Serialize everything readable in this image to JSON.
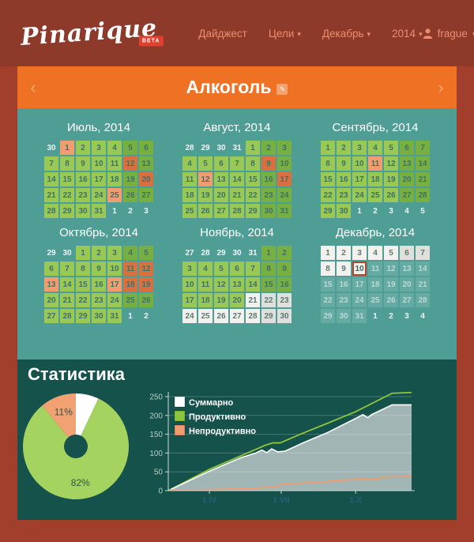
{
  "topbar": {
    "logo": "Pinarique",
    "beta": "BETA",
    "nav": [
      {
        "label": "Дайджест",
        "caret": false
      },
      {
        "label": "Цели",
        "caret": true
      },
      {
        "label": "Декабрь",
        "caret": true
      },
      {
        "label": "2014",
        "caret": true
      }
    ],
    "user": {
      "name": "frague"
    }
  },
  "header": {
    "title": "Алкоголь",
    "prev_icon": "‹",
    "next_icon": "›",
    "edit_icon": "✎"
  },
  "calendar": {
    "legend_states": {
      "o": "other-month",
      "g": "productive",
      "G": "productive-weekend",
      "b": "unproductive",
      "B": "unproductive-weekend",
      "e": "no-data",
      "E": "no-data-weekend",
      "f": "future",
      "t": "today"
    },
    "months": [
      {
        "title": "Июль, 2014",
        "cells": [
          [
            30,
            "o"
          ],
          [
            1,
            "b"
          ],
          [
            2,
            "g"
          ],
          [
            3,
            "g"
          ],
          [
            4,
            "g"
          ],
          [
            5,
            "G"
          ],
          [
            6,
            "G"
          ],
          [
            7,
            "g"
          ],
          [
            8,
            "g"
          ],
          [
            9,
            "g"
          ],
          [
            10,
            "g"
          ],
          [
            11,
            "g"
          ],
          [
            12,
            "B"
          ],
          [
            13,
            "G"
          ],
          [
            14,
            "g"
          ],
          [
            15,
            "g"
          ],
          [
            16,
            "g"
          ],
          [
            17,
            "g"
          ],
          [
            18,
            "g"
          ],
          [
            19,
            "G"
          ],
          [
            20,
            "B"
          ],
          [
            21,
            "g"
          ],
          [
            22,
            "g"
          ],
          [
            23,
            "g"
          ],
          [
            24,
            "g"
          ],
          [
            25,
            "b"
          ],
          [
            26,
            "G"
          ],
          [
            27,
            "G"
          ],
          [
            28,
            "g"
          ],
          [
            29,
            "g"
          ],
          [
            30,
            "g"
          ],
          [
            31,
            "g"
          ],
          [
            1,
            "o"
          ],
          [
            2,
            "o"
          ],
          [
            3,
            "o"
          ]
        ]
      },
      {
        "title": "Август, 2014",
        "cells": [
          [
            28,
            "o"
          ],
          [
            29,
            "o"
          ],
          [
            30,
            "o"
          ],
          [
            31,
            "o"
          ],
          [
            1,
            "g"
          ],
          [
            2,
            "G"
          ],
          [
            3,
            "G"
          ],
          [
            4,
            "g"
          ],
          [
            5,
            "g"
          ],
          [
            6,
            "g"
          ],
          [
            7,
            "g"
          ],
          [
            8,
            "g"
          ],
          [
            9,
            "B"
          ],
          [
            10,
            "G"
          ],
          [
            11,
            "g"
          ],
          [
            12,
            "b"
          ],
          [
            13,
            "g"
          ],
          [
            14,
            "g"
          ],
          [
            15,
            "g"
          ],
          [
            16,
            "G"
          ],
          [
            17,
            "B"
          ],
          [
            18,
            "g"
          ],
          [
            19,
            "g"
          ],
          [
            20,
            "g"
          ],
          [
            21,
            "g"
          ],
          [
            22,
            "g"
          ],
          [
            23,
            "G"
          ],
          [
            24,
            "G"
          ],
          [
            25,
            "g"
          ],
          [
            26,
            "g"
          ],
          [
            27,
            "g"
          ],
          [
            28,
            "g"
          ],
          [
            29,
            "g"
          ],
          [
            30,
            "G"
          ],
          [
            31,
            "G"
          ]
        ]
      },
      {
        "title": "Сентябрь, 2014",
        "cells": [
          [
            1,
            "g"
          ],
          [
            2,
            "g"
          ],
          [
            3,
            "g"
          ],
          [
            4,
            "g"
          ],
          [
            5,
            "g"
          ],
          [
            6,
            "G"
          ],
          [
            7,
            "G"
          ],
          [
            8,
            "g"
          ],
          [
            9,
            "g"
          ],
          [
            10,
            "g"
          ],
          [
            11,
            "b"
          ],
          [
            12,
            "g"
          ],
          [
            13,
            "G"
          ],
          [
            14,
            "G"
          ],
          [
            15,
            "g"
          ],
          [
            16,
            "g"
          ],
          [
            17,
            "g"
          ],
          [
            18,
            "g"
          ],
          [
            19,
            "g"
          ],
          [
            20,
            "G"
          ],
          [
            21,
            "G"
          ],
          [
            22,
            "g"
          ],
          [
            23,
            "g"
          ],
          [
            24,
            "g"
          ],
          [
            25,
            "g"
          ],
          [
            26,
            "g"
          ],
          [
            27,
            "G"
          ],
          [
            28,
            "G"
          ],
          [
            29,
            "g"
          ],
          [
            30,
            "g"
          ],
          [
            1,
            "o"
          ],
          [
            2,
            "o"
          ],
          [
            3,
            "o"
          ],
          [
            4,
            "o"
          ],
          [
            5,
            "o"
          ]
        ]
      },
      {
        "title": "Октябрь, 2014",
        "cells": [
          [
            29,
            "o"
          ],
          [
            30,
            "o"
          ],
          [
            1,
            "g"
          ],
          [
            2,
            "g"
          ],
          [
            3,
            "g"
          ],
          [
            4,
            "G"
          ],
          [
            5,
            "G"
          ],
          [
            6,
            "g"
          ],
          [
            7,
            "g"
          ],
          [
            8,
            "g"
          ],
          [
            9,
            "g"
          ],
          [
            10,
            "g"
          ],
          [
            11,
            "B"
          ],
          [
            12,
            "B"
          ],
          [
            13,
            "b"
          ],
          [
            14,
            "g"
          ],
          [
            15,
            "g"
          ],
          [
            16,
            "g"
          ],
          [
            17,
            "b"
          ],
          [
            18,
            "B"
          ],
          [
            19,
            "B"
          ],
          [
            20,
            "g"
          ],
          [
            21,
            "g"
          ],
          [
            22,
            "g"
          ],
          [
            23,
            "g"
          ],
          [
            24,
            "g"
          ],
          [
            25,
            "G"
          ],
          [
            26,
            "G"
          ],
          [
            27,
            "g"
          ],
          [
            28,
            "g"
          ],
          [
            29,
            "g"
          ],
          [
            30,
            "g"
          ],
          [
            31,
            "g"
          ],
          [
            1,
            "o"
          ],
          [
            2,
            "o"
          ]
        ]
      },
      {
        "title": "Ноябрь, 2014",
        "cells": [
          [
            27,
            "o"
          ],
          [
            28,
            "o"
          ],
          [
            29,
            "o"
          ],
          [
            30,
            "o"
          ],
          [
            31,
            "o"
          ],
          [
            1,
            "G"
          ],
          [
            2,
            "G"
          ],
          [
            3,
            "g"
          ],
          [
            4,
            "g"
          ],
          [
            5,
            "g"
          ],
          [
            6,
            "g"
          ],
          [
            7,
            "g"
          ],
          [
            8,
            "G"
          ],
          [
            9,
            "G"
          ],
          [
            10,
            "g"
          ],
          [
            11,
            "g"
          ],
          [
            12,
            "g"
          ],
          [
            13,
            "g"
          ],
          [
            14,
            "g"
          ],
          [
            15,
            "G"
          ],
          [
            16,
            "G"
          ],
          [
            17,
            "g"
          ],
          [
            18,
            "g"
          ],
          [
            19,
            "g"
          ],
          [
            20,
            "g"
          ],
          [
            21,
            "e"
          ],
          [
            22,
            "E"
          ],
          [
            23,
            "E"
          ],
          [
            24,
            "e"
          ],
          [
            25,
            "e"
          ],
          [
            26,
            "e"
          ],
          [
            27,
            "e"
          ],
          [
            28,
            "e"
          ],
          [
            29,
            "E"
          ],
          [
            30,
            "E"
          ]
        ]
      },
      {
        "title": "Декабрь, 2014",
        "cells": [
          [
            1,
            "e"
          ],
          [
            2,
            "e"
          ],
          [
            3,
            "e"
          ],
          [
            4,
            "e"
          ],
          [
            5,
            "e"
          ],
          [
            6,
            "E"
          ],
          [
            7,
            "E"
          ],
          [
            8,
            "e"
          ],
          [
            9,
            "e"
          ],
          [
            10,
            "t"
          ],
          [
            11,
            "f"
          ],
          [
            12,
            "f"
          ],
          [
            13,
            "f"
          ],
          [
            14,
            "f"
          ],
          [
            15,
            "f"
          ],
          [
            16,
            "f"
          ],
          [
            17,
            "f"
          ],
          [
            18,
            "f"
          ],
          [
            19,
            "f"
          ],
          [
            20,
            "f"
          ],
          [
            21,
            "f"
          ],
          [
            22,
            "f"
          ],
          [
            23,
            "f"
          ],
          [
            24,
            "f"
          ],
          [
            25,
            "f"
          ],
          [
            26,
            "f"
          ],
          [
            27,
            "f"
          ],
          [
            28,
            "f"
          ],
          [
            29,
            "f"
          ],
          [
            30,
            "f"
          ],
          [
            31,
            "f"
          ],
          [
            1,
            "o"
          ],
          [
            2,
            "o"
          ],
          [
            3,
            "o"
          ],
          [
            4,
            "o"
          ]
        ]
      }
    ]
  },
  "stats": {
    "heading": "Статистика"
  },
  "chart_data": [
    {
      "type": "pie",
      "donut": true,
      "start_angle": "top",
      "direction": "clockwise",
      "slices": [
        {
          "label": "",
          "value": 7,
          "color": "#ffffff"
        },
        {
          "label": "82%",
          "value": 82,
          "color": "#a4d45f"
        },
        {
          "label": "11%",
          "value": 11,
          "color": "#f2a173"
        }
      ]
    },
    {
      "type": "area",
      "ylim": [
        0,
        250
      ],
      "yticks": [
        0,
        50,
        100,
        150,
        200,
        250
      ],
      "grid": true,
      "legend_position": "top-left",
      "xticks": [
        {
          "label": "1.IV",
          "pos": 0.169
        },
        {
          "label": "1.VII",
          "pos": 0.464
        },
        {
          "label": "1.X",
          "pos": 0.77
        }
      ],
      "series": [
        {
          "name": "Суммарно",
          "color": "#ffffff",
          "fill": "#a2b5b5",
          "points": [
            [
              0,
              0
            ],
            [
              0.17,
              52
            ],
            [
              0.3,
              88
            ],
            [
              0.36,
              100
            ],
            [
              0.385,
              108
            ],
            [
              0.405,
              101
            ],
            [
              0.425,
              111
            ],
            [
              0.45,
              103
            ],
            [
              0.48,
              105
            ],
            [
              0.55,
              126
            ],
            [
              0.65,
              153
            ],
            [
              0.77,
              192
            ],
            [
              0.8,
              202
            ],
            [
              0.82,
              194
            ],
            [
              0.835,
              202
            ],
            [
              0.92,
              228
            ],
            [
              1,
              228
            ]
          ]
        },
        {
          "name": "Продуктивно",
          "color": "#8dc63e",
          "points": [
            [
              0,
              0
            ],
            [
              0.17,
              57
            ],
            [
              0.3,
              93
            ],
            [
              0.4,
              121
            ],
            [
              0.43,
              127
            ],
            [
              0.46,
              127
            ],
            [
              0.55,
              152
            ],
            [
              0.65,
              178
            ],
            [
              0.77,
              210
            ],
            [
              0.92,
              259
            ],
            [
              1,
              261
            ]
          ]
        },
        {
          "name": "Непродуктивно",
          "color": "#f09a6e",
          "points": [
            [
              0,
              2
            ],
            [
              0.12,
              2
            ],
            [
              0.25,
              4
            ],
            [
              0.33,
              5
            ],
            [
              0.4,
              8
            ],
            [
              0.445,
              9
            ],
            [
              0.465,
              17
            ],
            [
              0.5,
              19
            ],
            [
              0.55,
              20
            ],
            [
              0.65,
              24
            ],
            [
              0.72,
              28
            ],
            [
              0.8,
              30
            ],
            [
              0.862,
              31
            ],
            [
              0.872,
              36
            ],
            [
              0.93,
              37
            ],
            [
              1,
              38
            ]
          ]
        }
      ]
    }
  ]
}
